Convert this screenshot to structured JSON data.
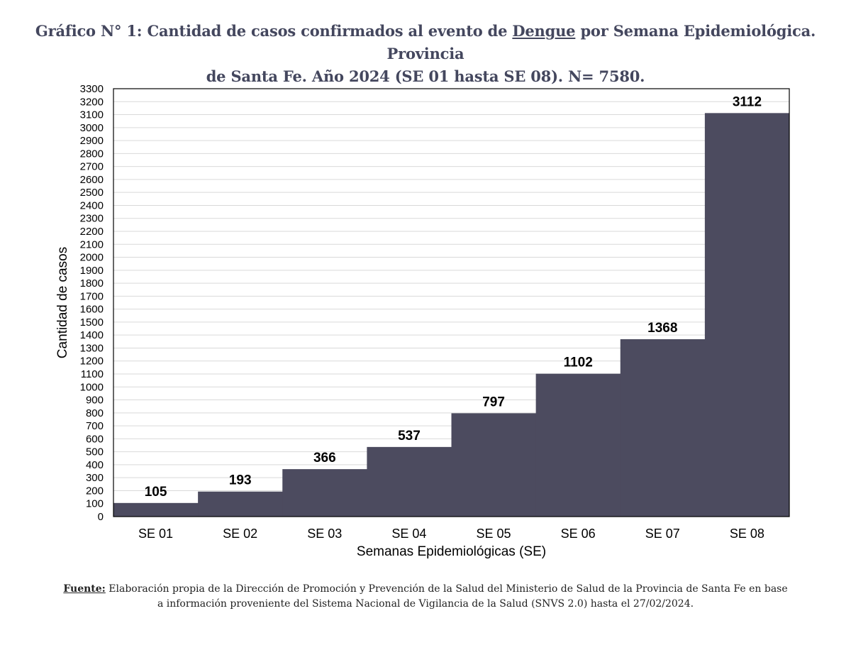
{
  "title": {
    "prefix": "Gráfico N° 1: Cantidad de casos confirmados al evento de ",
    "emphasis": "Dengue",
    "line1_suffix": " por Semana Epidemiológica. Provincia",
    "line2": "de Santa Fe. Año 2024 (SE 01 hasta SE 08). N= 7580."
  },
  "source": {
    "label": "Fuente:",
    "line1": " Elaboración propia de la Dirección de Promoción y Prevención de la Salud del Ministerio de Salud de la Provincia de Santa Fe en base",
    "line2": "a información proveniente del Sistema Nacional de Vigilancia de la Salud (SNVS 2.0) hasta el 27/02/2024."
  },
  "colors": {
    "bar": "#4c4b5f",
    "grid": "#d9d9d9",
    "axis": "#000000",
    "title": "#44475e"
  },
  "chart_data": {
    "type": "bar",
    "title": "Gráfico N° 1: Cantidad de casos confirmados al evento de Dengue por Semana Epidemiológica. Provincia de Santa Fe. Año 2024 (SE 01 hasta SE 08). N= 7580.",
    "xlabel": "Semanas Epidemiológicas (SE)",
    "ylabel": "Cantidad de casos",
    "categories": [
      "SE 01",
      "SE 02",
      "SE 03",
      "SE 04",
      "SE 05",
      "SE 06",
      "SE 07",
      "SE 08"
    ],
    "values": [
      105,
      193,
      366,
      537,
      797,
      1102,
      1368,
      3112
    ],
    "ylim": [
      0,
      3300
    ],
    "ytick_step": 100,
    "grid": true,
    "legend": "none"
  }
}
